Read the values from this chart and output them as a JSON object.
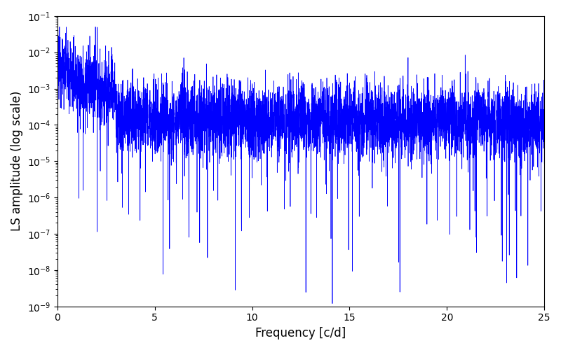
{
  "xlabel": "Frequency [c/d]",
  "ylabel": "LS amplitude (log scale)",
  "line_color": "#0000ff",
  "xlim": [
    0,
    25
  ],
  "ylim": [
    1e-09,
    0.1
  ],
  "xticks": [
    0,
    5,
    10,
    15,
    20,
    25
  ],
  "figsize": [
    8.0,
    5.0
  ],
  "dpi": 100,
  "seed": 12345,
  "n_freqs": 5000,
  "freq_max": 25.0,
  "line_width": 0.5,
  "background_color": "#ffffff"
}
